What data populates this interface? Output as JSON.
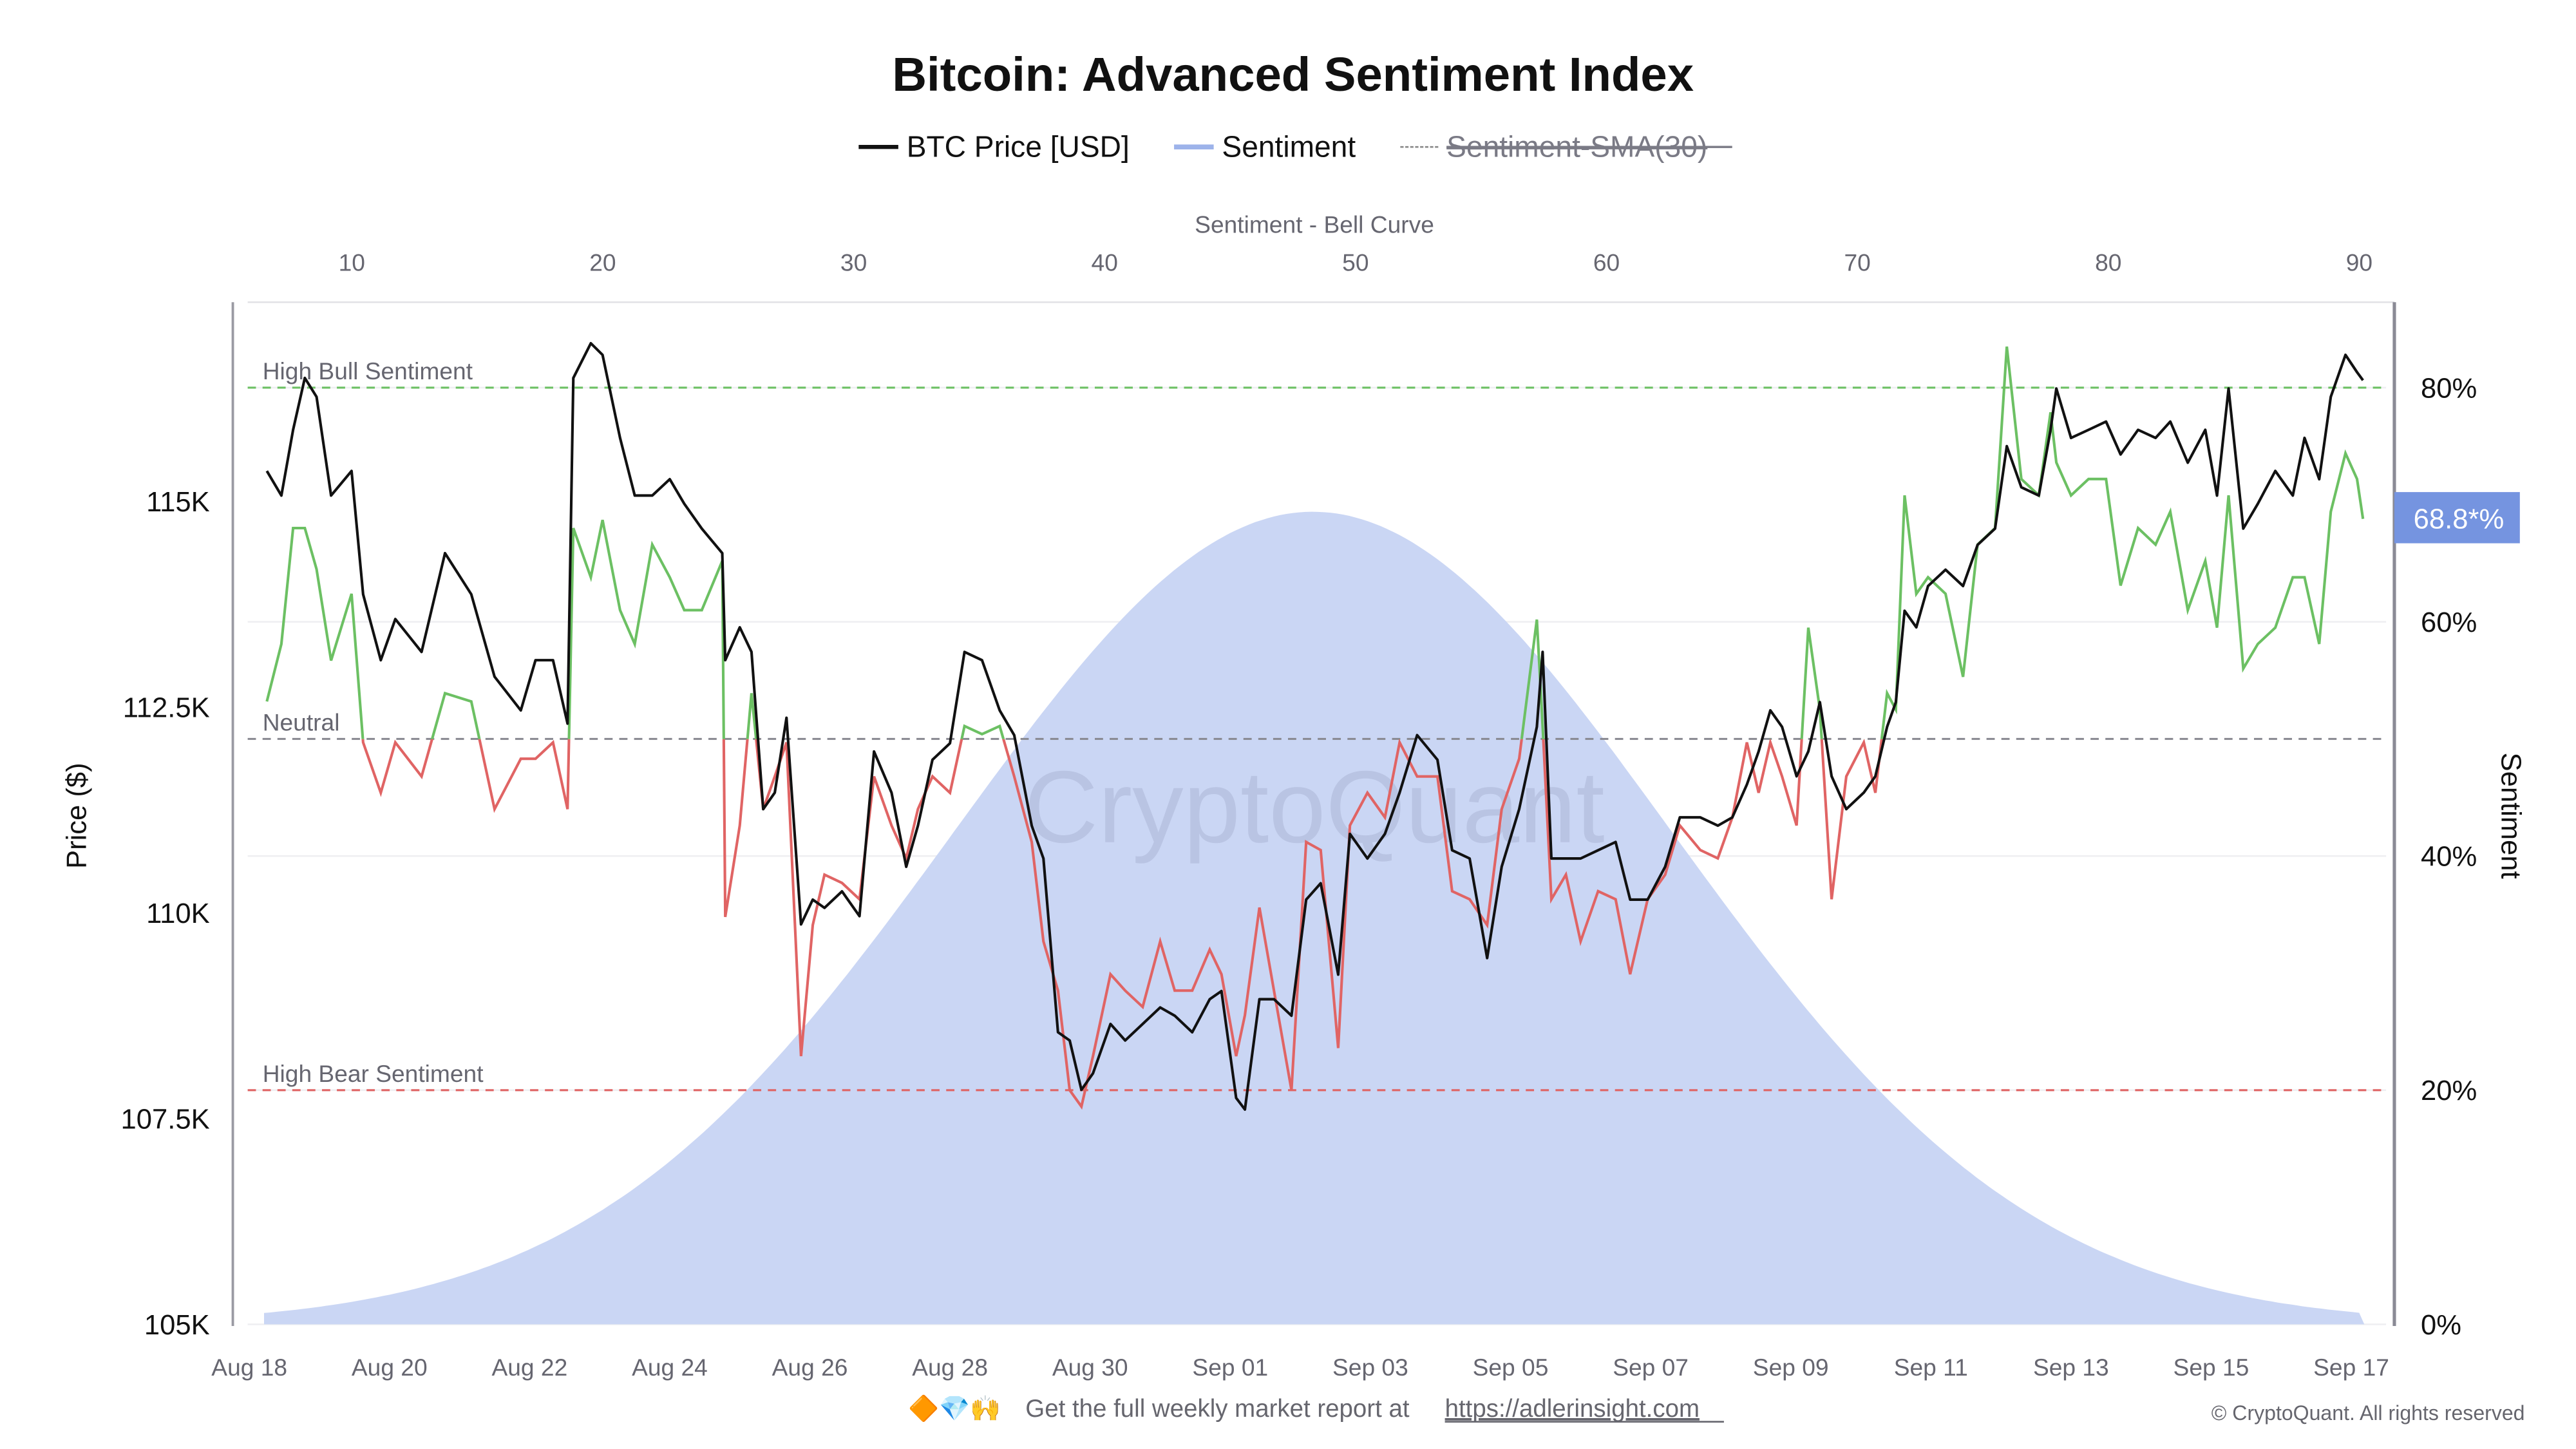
{
  "chart_data": {
    "type": "line",
    "title": "Bitcoin: Advanced Sentiment Index",
    "legend": {
      "placement": "top",
      "items": [
        {
          "label": "BTC Price [USD]",
          "color": "#111111",
          "style": "solid",
          "hidden": false
        },
        {
          "label": "Sentiment",
          "color": "#9db3ea",
          "style": "solid",
          "hidden": false
        },
        {
          "label": "Sentiment-SMA(30)",
          "color": "#888888",
          "style": "dotted",
          "hidden": true
        }
      ]
    },
    "top_axis": {
      "label": "Sentiment - Bell Curve",
      "ticks": [
        "10",
        "20",
        "30",
        "40",
        "50",
        "60",
        "70",
        "80",
        "90"
      ],
      "range": [
        5.85,
        91.4
      ]
    },
    "left_axis": {
      "label": "Price ($)",
      "ticks": [
        "105K",
        "107.5K",
        "110K",
        "112.5K",
        "115K"
      ],
      "tick_values": [
        105000,
        107500,
        110000,
        112500,
        115000
      ],
      "range": [
        105000,
        117420
      ]
    },
    "right_axis": {
      "label": "Sentiment",
      "ticks": [
        "0%",
        "20%",
        "40%",
        "60%",
        "80%"
      ],
      "tick_values": [
        0,
        20,
        40,
        60,
        80
      ],
      "range": [
        0,
        87.3
      ]
    },
    "bottom_axis": {
      "ticks": [
        "Aug 18",
        "Aug 20",
        "Aug 22",
        "Aug 24",
        "Aug 26",
        "Aug 28",
        "Aug 30",
        "Sep 01",
        "Sep 03",
        "Sep 05",
        "Sep 07",
        "Sep 09",
        "Sep 11",
        "Sep 13",
        "Sep 15",
        "Sep 17"
      ]
    },
    "reference_lines": [
      {
        "label": "High Bull Sentiment",
        "value": 80,
        "color": "#6cc063"
      },
      {
        "label": "Neutral",
        "value": 50,
        "color": "#888890"
      },
      {
        "label": "High Bear Sentiment",
        "value": 20,
        "color": "#e06464"
      }
    ],
    "current_badge": {
      "text": "68.8*%",
      "value": 68.8,
      "color": "#7594e0"
    },
    "colors": {
      "bull": "#6cc063",
      "bear": "#e06464",
      "price": "#111111",
      "bell_fill": "#cad6f4"
    },
    "grid": true,
    "bell_curve": {
      "mean": 48.3,
      "std": 14.3,
      "peak_percent": 69.4,
      "x_range": [
        6.5,
        90.2
      ]
    },
    "x": [
      "08-18 06",
      "08-18 11",
      "08-18 15",
      "08-18 19",
      "08-18 23",
      "08-19 04",
      "08-19 11",
      "08-19 15",
      "08-19 21",
      "08-20 02",
      "08-20 11",
      "08-20 19",
      "08-21 04",
      "08-21 12",
      "08-21 21",
      "08-22 02",
      "08-22 08",
      "08-22 13",
      "08-22 15",
      "08-22 21",
      "08-23 01",
      "08-23 07",
      "08-23 12",
      "08-23 18",
      "08-24 00",
      "08-24 05",
      "08-24 11",
      "08-24 18",
      "08-24 19",
      "08-25 00",
      "08-25 04",
      "08-25 08",
      "08-25 12",
      "08-25 16",
      "08-25 21",
      "08-26 01",
      "08-26 05",
      "08-26 11",
      "08-26 17",
      "08-26 22",
      "08-27 04",
      "08-27 09",
      "08-27 13",
      "08-27 18",
      "08-28 00",
      "08-28 05",
      "08-28 11",
      "08-28 17",
      "08-28 22",
      "08-29 04",
      "08-29 08",
      "08-29 13",
      "08-29 17",
      "08-29 21",
      "08-30 01",
      "08-30 07",
      "08-30 12",
      "08-30 18",
      "08-31 00",
      "08-31 05",
      "08-31 11",
      "08-31 17",
      "08-31 21",
      "09-01 02",
      "09-01 05",
      "09-01 10",
      "09-01 15",
      "09-01 21",
      "09-02 02",
      "09-02 07",
      "09-02 13",
      "09-02 17",
      "09-02 23",
      "09-03 05",
      "09-03 10",
      "09-03 16",
      "09-03 23",
      "09-04 04",
      "09-04 10",
      "09-04 16",
      "09-04 21",
      "09-05 03",
      "09-05 09",
      "09-05 11",
      "09-05 14",
      "09-05 19",
      "09-06 00",
      "09-06 06",
      "09-06 12",
      "09-06 17",
      "09-06 23",
      "09-07 05",
      "09-07 10",
      "09-07 17",
      "09-07 23",
      "09-08 04",
      "09-08 09",
      "09-08 13",
      "09-08 17",
      "09-08 21",
      "09-09 02",
      "09-09 06",
      "09-09 10",
      "09-09 14",
      "09-09 19",
      "09-10 01",
      "09-10 05",
      "09-10 09",
      "09-10 12",
      "09-10 15",
      "09-10 19",
      "09-10 23",
      "09-11 05",
      "09-11 11",
      "09-11 16",
      "09-11 22",
      "09-12 02",
      "09-12 07",
      "09-12 13",
      "09-12 17",
      "09-12 19",
      "09-13 00",
      "09-13 06",
      "09-13 12",
      "09-13 17",
      "09-13 23",
      "09-14 05",
      "09-14 10",
      "09-14 16",
      "09-14 22",
      "09-15 02",
      "09-15 06",
      "09-15 11",
      "09-15 16",
      "09-15 22",
      "09-16 04",
      "09-16 08",
      "09-16 13",
      "09-16 17",
      "09-16 22",
      "09-17 02",
      "09-17 04"
    ],
    "series": [
      {
        "name": "BTC Price [USD]",
        "values": [
          115370,
          115070,
          115870,
          116500,
          116270,
          115070,
          115370,
          113870,
          113070,
          113570,
          113170,
          114370,
          113870,
          112870,
          112460,
          113070,
          113070,
          112300,
          116500,
          116920,
          116780,
          115770,
          115070,
          115070,
          115270,
          114970,
          114670,
          114370,
          113070,
          113470,
          113170,
          111260,
          111460,
          112370,
          109860,
          110160,
          110060,
          110260,
          109960,
          111960,
          111460,
          110560,
          111060,
          111860,
          112060,
          113170,
          113070,
          112460,
          112160,
          111060,
          110660,
          108550,
          108450,
          107850,
          108050,
          108650,
          108450,
          108650,
          108850,
          108750,
          108550,
          108950,
          109050,
          107750,
          107610,
          108950,
          108950,
          108750,
          110160,
          110360,
          109250,
          110960,
          110660,
          110960,
          111460,
          112160,
          111860,
          110760,
          110660,
          109450,
          110560,
          111260,
          112260,
          113170,
          110660,
          110660,
          110660,
          110760,
          110860,
          110160,
          110160,
          110560,
          111160,
          111160,
          111060,
          111160,
          111560,
          111960,
          112460,
          112260,
          111660,
          111960,
          112560,
          111660,
          111260,
          111460,
          111660,
          112260,
          112560,
          113670,
          113470,
          113970,
          114170,
          113970,
          114470,
          114670,
          115670,
          115170,
          115070,
          115870,
          116370,
          115770,
          115870,
          115970,
          115570,
          115870,
          115770,
          115970,
          115470,
          115870,
          115070,
          116370,
          114670,
          114970,
          115370,
          115070,
          115770,
          115270,
          116270,
          116780,
          116570,
          116470
        ]
      },
      {
        "name": "Sentiment",
        "values": [
          53.2,
          58.1,
          68,
          68,
          64.5,
          56.7,
          62.4,
          49.7,
          45.4,
          49.7,
          46.8,
          53.9,
          53.2,
          44,
          48.3,
          48.3,
          49.7,
          44,
          68,
          63.8,
          68.7,
          61,
          58.1,
          66.6,
          63.8,
          61,
          61,
          65.2,
          34.8,
          42.6,
          53.9,
          44,
          46.8,
          49.7,
          22.9,
          34.1,
          38.4,
          37.7,
          36.3,
          46.8,
          42.6,
          39.8,
          44,
          46.8,
          45.4,
          51.1,
          50.4,
          51.1,
          46.8,
          41.2,
          32.7,
          28.5,
          20,
          18.6,
          22.9,
          29.9,
          28.5,
          27.1,
          32.7,
          28.5,
          28.5,
          32,
          29.9,
          22.9,
          26.4,
          35.6,
          28.5,
          20,
          41.2,
          40.5,
          23.6,
          42.6,
          45.4,
          43.3,
          49.7,
          46.8,
          46.8,
          37,
          36.3,
          34.1,
          44,
          48.3,
          60.2,
          51.1,
          36.3,
          38.4,
          32.7,
          37,
          36.3,
          29.9,
          36.3,
          38.4,
          42.6,
          40.5,
          39.8,
          43.3,
          49.7,
          45.4,
          49.7,
          46.8,
          42.6,
          59.5,
          52.5,
          36.3,
          46.8,
          49.7,
          45.4,
          53.9,
          52.5,
          70.8,
          62.4,
          63.8,
          62.4,
          55.3,
          66.6,
          68,
          83.5,
          72.2,
          70.8,
          77.9,
          73.6,
          70.8,
          72.2,
          72.2,
          63.1,
          68,
          66.6,
          69.4,
          61,
          65.2,
          59.5,
          70.8,
          56,
          58.1,
          59.5,
          63.8,
          63.8,
          58.1,
          69.4,
          74.4,
          72.2,
          68.8
        ]
      }
    ],
    "watermark": "CryptoQuant"
  },
  "footer": {
    "emoji": "🔶💎🙌",
    "text": "Get the full weekly market report at",
    "link": "https://adlerinsight.com",
    "copyright": "© CryptoQuant. All rights reserved"
  }
}
